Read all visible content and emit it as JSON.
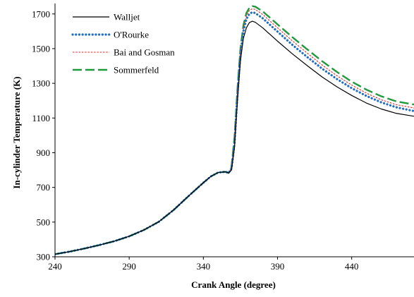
{
  "chart_data": {
    "type": "line",
    "xlabel": "Crank Angle (degree)",
    "ylabel": "In-cylinder  Temperature  (K)",
    "xlim": [
      240,
      482
    ],
    "ylim": [
      300,
      1760
    ],
    "x_ticks": [
      240,
      290,
      340,
      390,
      440
    ],
    "y_ticks": [
      300,
      500,
      700,
      900,
      1100,
      1300,
      1500,
      1700
    ],
    "grid": false,
    "legend_position": "top-left",
    "series": [
      {
        "name": "Walljet",
        "color": "#000000",
        "dash": "solid",
        "points": [
          [
            240,
            315
          ],
          [
            250,
            330
          ],
          [
            260,
            348
          ],
          [
            270,
            368
          ],
          [
            280,
            390
          ],
          [
            290,
            418
          ],
          [
            300,
            455
          ],
          [
            310,
            502
          ],
          [
            320,
            570
          ],
          [
            330,
            650
          ],
          [
            340,
            727
          ],
          [
            345,
            763
          ],
          [
            350,
            786
          ],
          [
            355,
            790
          ],
          [
            357,
            783
          ],
          [
            359,
            800
          ],
          [
            361,
            930
          ],
          [
            363,
            1200
          ],
          [
            365,
            1430
          ],
          [
            367,
            1560
          ],
          [
            369,
            1620
          ],
          [
            371,
            1650
          ],
          [
            373,
            1658
          ],
          [
            375,
            1652
          ],
          [
            380,
            1620
          ],
          [
            390,
            1543
          ],
          [
            400,
            1470
          ],
          [
            410,
            1402
          ],
          [
            420,
            1337
          ],
          [
            430,
            1280
          ],
          [
            440,
            1230
          ],
          [
            450,
            1186
          ],
          [
            460,
            1152
          ],
          [
            470,
            1127
          ],
          [
            482,
            1110
          ]
        ]
      },
      {
        "name": "O'Rourke",
        "color": "#1f6fc5",
        "dash": "dotted",
        "points": [
          [
            240,
            315
          ],
          [
            250,
            330
          ],
          [
            260,
            348
          ],
          [
            270,
            368
          ],
          [
            280,
            390
          ],
          [
            290,
            418
          ],
          [
            300,
            455
          ],
          [
            310,
            502
          ],
          [
            320,
            570
          ],
          [
            330,
            650
          ],
          [
            340,
            727
          ],
          [
            345,
            763
          ],
          [
            350,
            786
          ],
          [
            355,
            790
          ],
          [
            357,
            783
          ],
          [
            359,
            810
          ],
          [
            361,
            960
          ],
          [
            363,
            1240
          ],
          [
            365,
            1470
          ],
          [
            367,
            1600
          ],
          [
            369,
            1670
          ],
          [
            371,
            1700
          ],
          [
            373,
            1710
          ],
          [
            375,
            1705
          ],
          [
            380,
            1675
          ],
          [
            390,
            1598
          ],
          [
            400,
            1522
          ],
          [
            410,
            1452
          ],
          [
            420,
            1385
          ],
          [
            430,
            1325
          ],
          [
            440,
            1272
          ],
          [
            450,
            1227
          ],
          [
            460,
            1190
          ],
          [
            470,
            1162
          ],
          [
            482,
            1140
          ]
        ]
      },
      {
        "name": "Bai and Gosman",
        "color": "#e3261f",
        "dash": "short",
        "points": [
          [
            240,
            315
          ],
          [
            250,
            330
          ],
          [
            260,
            348
          ],
          [
            270,
            368
          ],
          [
            280,
            390
          ],
          [
            290,
            418
          ],
          [
            300,
            455
          ],
          [
            310,
            502
          ],
          [
            320,
            570
          ],
          [
            330,
            650
          ],
          [
            340,
            727
          ],
          [
            345,
            763
          ],
          [
            350,
            786
          ],
          [
            355,
            790
          ],
          [
            357,
            783
          ],
          [
            359,
            815
          ],
          [
            361,
            975
          ],
          [
            363,
            1255
          ],
          [
            365,
            1485
          ],
          [
            367,
            1618
          ],
          [
            369,
            1690
          ],
          [
            371,
            1720
          ],
          [
            373,
            1730
          ],
          [
            375,
            1726
          ],
          [
            380,
            1697
          ],
          [
            390,
            1620
          ],
          [
            400,
            1545
          ],
          [
            410,
            1474
          ],
          [
            420,
            1406
          ],
          [
            430,
            1344
          ],
          [
            440,
            1290
          ],
          [
            450,
            1243
          ],
          [
            460,
            1205
          ],
          [
            470,
            1177
          ],
          [
            482,
            1158
          ]
        ]
      },
      {
        "name": "Sommerfeld",
        "color": "#1e9a3d",
        "dash": "long",
        "points": [
          [
            240,
            315
          ],
          [
            250,
            330
          ],
          [
            260,
            348
          ],
          [
            270,
            368
          ],
          [
            280,
            390
          ],
          [
            290,
            418
          ],
          [
            300,
            455
          ],
          [
            310,
            502
          ],
          [
            320,
            570
          ],
          [
            330,
            650
          ],
          [
            340,
            727
          ],
          [
            345,
            763
          ],
          [
            350,
            786
          ],
          [
            355,
            790
          ],
          [
            357,
            783
          ],
          [
            359,
            820
          ],
          [
            361,
            990
          ],
          [
            363,
            1270
          ],
          [
            365,
            1500
          ],
          [
            367,
            1635
          ],
          [
            369,
            1705
          ],
          [
            371,
            1735
          ],
          [
            373,
            1745
          ],
          [
            375,
            1742
          ],
          [
            380,
            1715
          ],
          [
            390,
            1640
          ],
          [
            400,
            1566
          ],
          [
            410,
            1496
          ],
          [
            420,
            1428
          ],
          [
            430,
            1366
          ],
          [
            440,
            1310
          ],
          [
            450,
            1263
          ],
          [
            460,
            1225
          ],
          [
            470,
            1196
          ],
          [
            482,
            1178
          ]
        ]
      }
    ]
  }
}
